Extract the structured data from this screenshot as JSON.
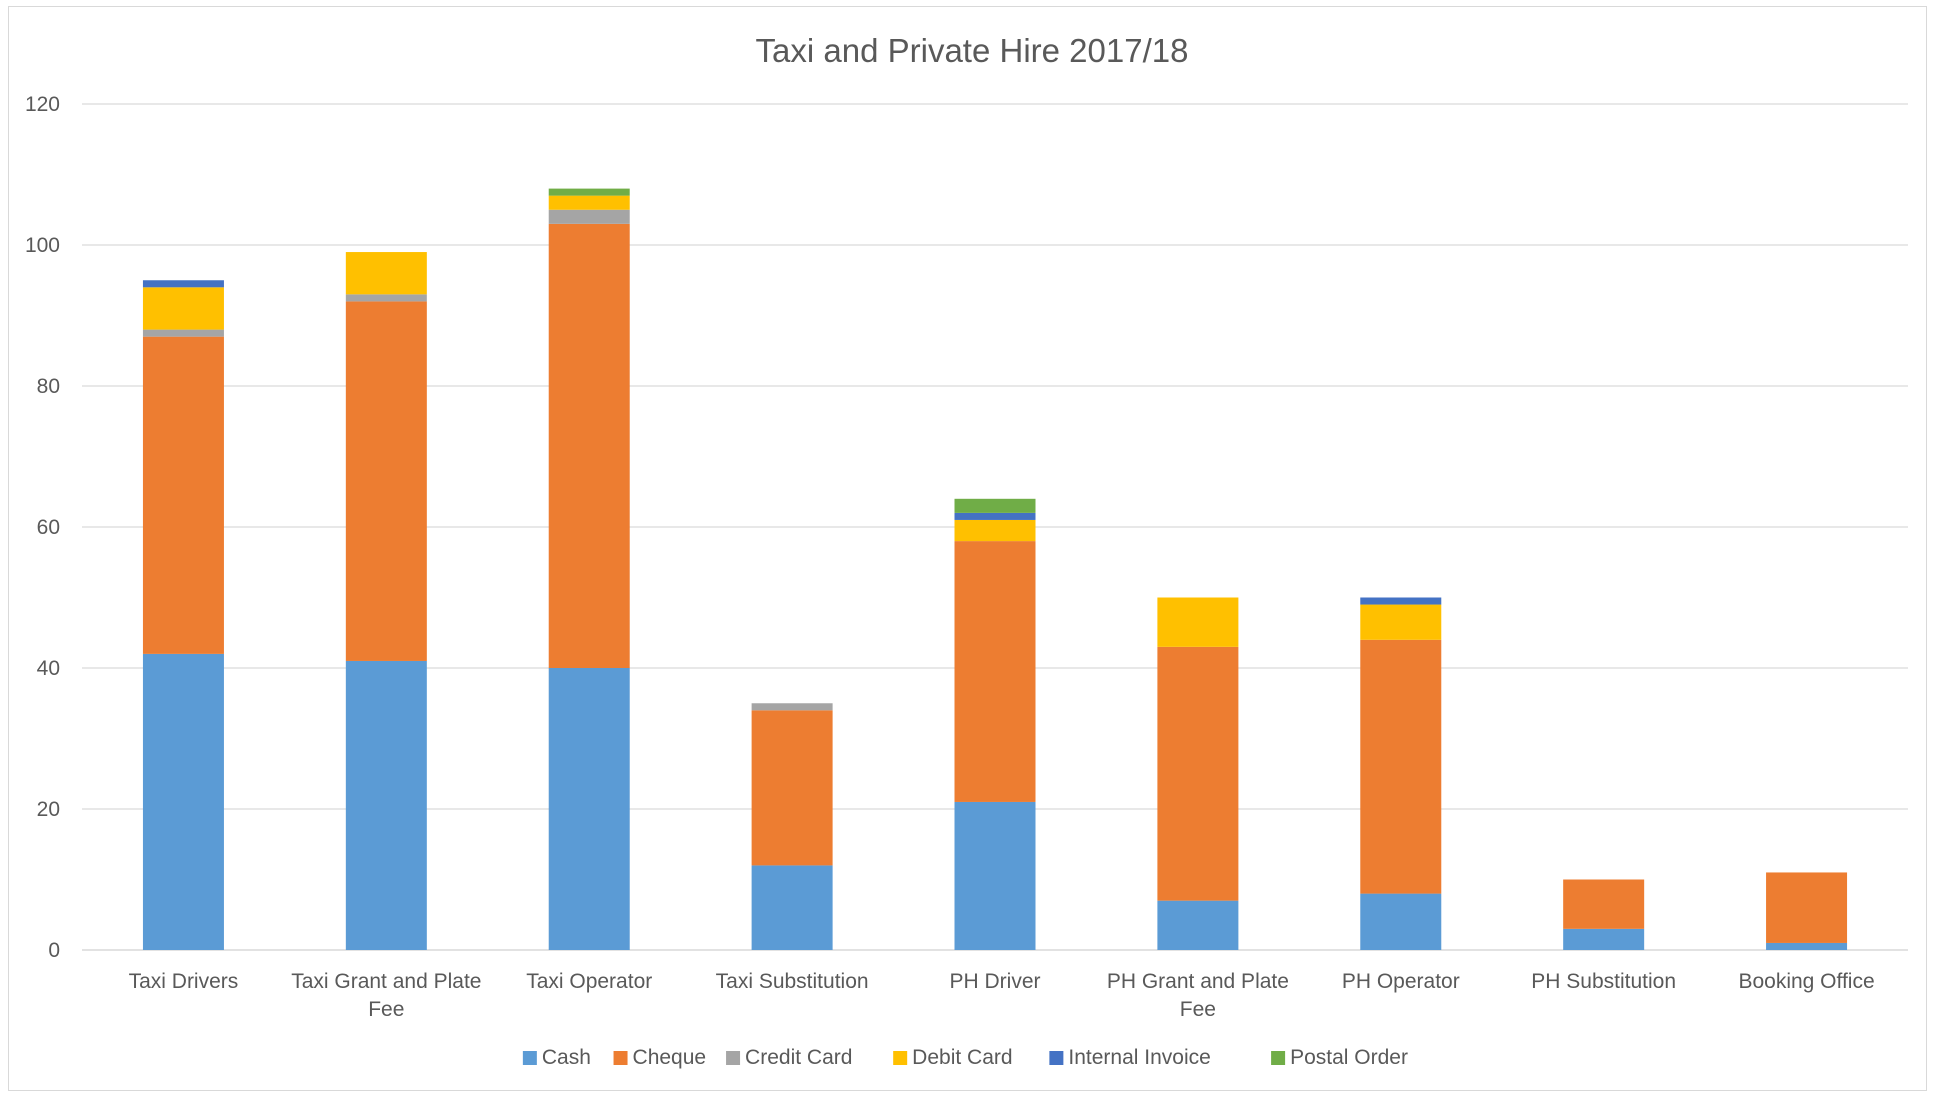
{
  "chart_data": {
    "type": "bar",
    "stacked": true,
    "title": "Taxi and Private Hire 2017/18",
    "xlabel": "",
    "ylabel": "",
    "ylim": [
      0,
      120
    ],
    "yticks": [
      "0",
      "20",
      "40",
      "60",
      "80",
      "100",
      "120"
    ],
    "grid": true,
    "legend_position": "bottom",
    "categories": [
      [
        "Taxi Drivers"
      ],
      [
        "Taxi Grant and Plate",
        "Fee"
      ],
      [
        "Taxi Operator"
      ],
      [
        "Taxi Substitution"
      ],
      [
        "PH Driver"
      ],
      [
        "PH Grant and Plate",
        "Fee"
      ],
      [
        "PH Operator"
      ],
      [
        "PH Substitution"
      ],
      [
        "Booking Office"
      ]
    ],
    "series": [
      {
        "name": "Cash",
        "color": "#5b9bd5",
        "values": [
          42,
          41,
          40,
          12,
          21,
          7,
          8,
          3,
          1
        ]
      },
      {
        "name": "Cheque",
        "color": "#ed7d31",
        "values": [
          45,
          51,
          63,
          22,
          37,
          36,
          36,
          7,
          10
        ]
      },
      {
        "name": "Credit Card",
        "color": "#a5a5a5",
        "values": [
          1,
          1,
          2,
          1,
          0,
          0,
          0,
          0,
          0
        ]
      },
      {
        "name": "Debit Card",
        "color": "#ffc000",
        "values": [
          6,
          6,
          2,
          0,
          3,
          7,
          5,
          0,
          0
        ]
      },
      {
        "name": "Internal Invoice",
        "color": "#4472c4",
        "values": [
          1,
          0,
          0,
          0,
          1,
          0,
          1,
          0,
          0
        ]
      },
      {
        "name": "Postal Order",
        "color": "#70ad47",
        "values": [
          0,
          0,
          1,
          0,
          2,
          0,
          0,
          0,
          0
        ]
      }
    ]
  }
}
